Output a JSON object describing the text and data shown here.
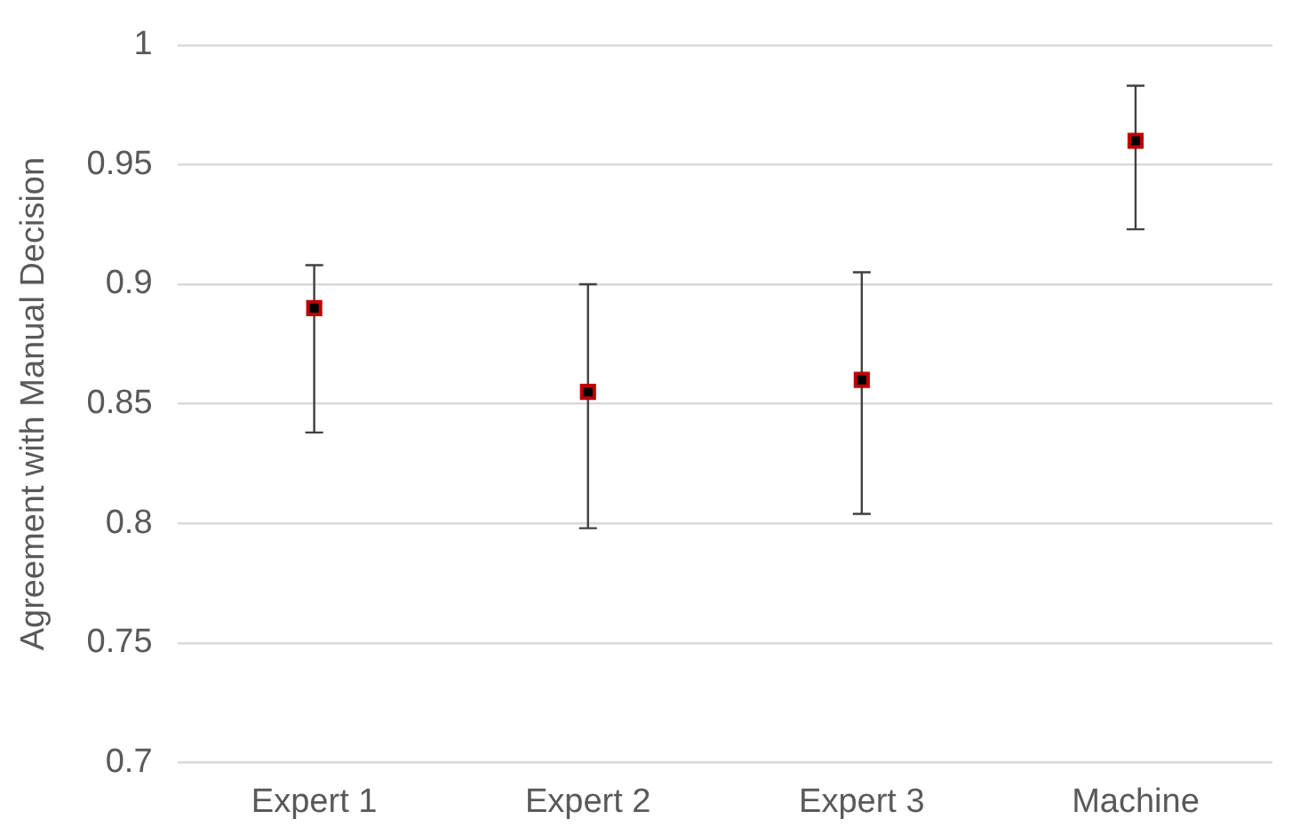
{
  "chart_data": {
    "type": "scatter",
    "ylabel": "Agreement with Manual Decision",
    "categories": [
      "Expert 1",
      "Expert 2",
      "Expert 3",
      "Machine"
    ],
    "values": [
      0.89,
      0.855,
      0.86,
      0.96
    ],
    "errors": [
      [
        0.838,
        0.908
      ],
      [
        0.798,
        0.9
      ],
      [
        0.804,
        0.905
      ],
      [
        0.923,
        0.983
      ]
    ],
    "color": "#c00000",
    "marker": "square",
    "ylim": [
      0.7,
      1
    ],
    "yticks": [
      0.7,
      0.75,
      0.8,
      0.85,
      0.9,
      0.95,
      1
    ],
    "grid": "y",
    "legend": false
  }
}
